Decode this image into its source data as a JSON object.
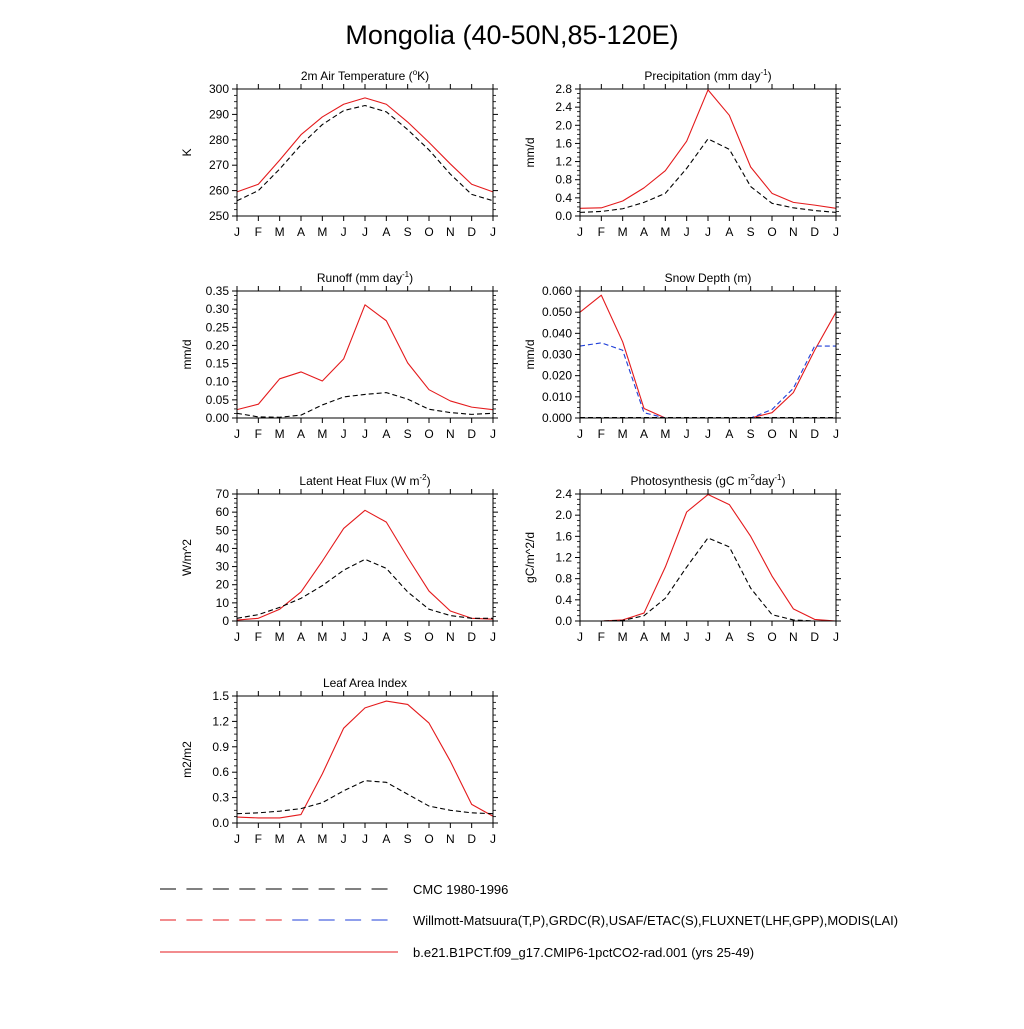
{
  "figure": {
    "title": "Mongolia (40-50N,85-120E)"
  },
  "colors": {
    "model": "#e41a1c",
    "cmc": "#000000",
    "obs": "#1f3fd8",
    "axis": "#000000"
  },
  "legend": {
    "placement": "bottom",
    "entries": [
      {
        "key": "cmc",
        "label": "CMC 1980-1996",
        "style": "dashed",
        "colors": [
          "#000000"
        ]
      },
      {
        "key": "obs",
        "label": "Willmott-Matsuura(T,P),GRDC(R),USAF/ETAC(S),FLUXNET(LHF,GPP),MODIS(LAI)",
        "style": "dashed",
        "colors": [
          "#e41a1c",
          "#1f3fd8"
        ]
      },
      {
        "key": "model",
        "label": "b.e21.B1PCT.f09_g17.CMIP6-1pctCO2-rad.001 (yrs 25-49)",
        "style": "solid",
        "colors": [
          "#e41a1c"
        ]
      }
    ]
  },
  "chart_data": [
    {
      "type": "line",
      "title": "2m Air Temperature (°K)",
      "title_parts": {
        "pre": "2m Air Temperature (",
        "sup": "o",
        "post": "K)"
      },
      "ylabel": "K",
      "ylim": [
        250,
        300
      ],
      "yticks": [
        "250",
        "260",
        "270",
        "280",
        "290",
        "300"
      ],
      "categories": [
        "J",
        "F",
        "M",
        "A",
        "M",
        "J",
        "J",
        "A",
        "S",
        "O",
        "N",
        "D",
        "J"
      ],
      "series": [
        {
          "key": "model",
          "style": "solid",
          "color": "#e41a1c",
          "values": [
            259.5,
            262.5,
            272,
            282,
            289,
            294,
            296.5,
            294,
            287,
            279,
            270.5,
            262.5,
            259.5
          ]
        },
        {
          "key": "cmc",
          "style": "dashed",
          "color": "#000000",
          "values": [
            256,
            260,
            268.5,
            278,
            286,
            291.5,
            293.5,
            291,
            284,
            276,
            266.5,
            258.5,
            256
          ]
        }
      ]
    },
    {
      "type": "line",
      "title": "Precipitation (mm day-1)",
      "title_parts": {
        "pre": "Precipitation (mm day",
        "sup": "-1",
        "post": ")"
      },
      "ylabel": "mm/d",
      "ylim": [
        0,
        2.8
      ],
      "yticks": [
        "0.0",
        "0.4",
        "0.8",
        "1.2",
        "1.6",
        "2.0",
        "2.4",
        "2.8"
      ],
      "categories": [
        "J",
        "F",
        "M",
        "A",
        "M",
        "J",
        "J",
        "A",
        "S",
        "O",
        "N",
        "D",
        "J"
      ],
      "series": [
        {
          "key": "model",
          "style": "solid",
          "color": "#e41a1c",
          "values": [
            0.17,
            0.18,
            0.33,
            0.62,
            1.0,
            1.65,
            2.78,
            2.22,
            1.08,
            0.5,
            0.3,
            0.24,
            0.17
          ]
        },
        {
          "key": "cmc",
          "style": "dashed",
          "color": "#000000",
          "values": [
            0.08,
            0.1,
            0.16,
            0.3,
            0.5,
            1.05,
            1.7,
            1.47,
            0.65,
            0.28,
            0.18,
            0.12,
            0.08
          ]
        }
      ]
    },
    {
      "type": "line",
      "title": "Runoff (mm day-1)",
      "title_parts": {
        "pre": "Runoff (mm day",
        "sup": "-1",
        "post": ")"
      },
      "ylabel": "mm/d",
      "ylim": [
        0,
        0.35
      ],
      "yticks": [
        "0.00",
        "0.05",
        "0.10",
        "0.15",
        "0.20",
        "0.25",
        "0.30",
        "0.35"
      ],
      "categories": [
        "J",
        "F",
        "M",
        "A",
        "M",
        "J",
        "J",
        "A",
        "S",
        "O",
        "N",
        "D",
        "J"
      ],
      "series": [
        {
          "key": "model",
          "style": "solid",
          "color": "#e41a1c",
          "values": [
            0.023,
            0.038,
            0.108,
            0.127,
            0.102,
            0.163,
            0.312,
            0.268,
            0.152,
            0.078,
            0.047,
            0.03,
            0.023
          ]
        },
        {
          "key": "cmc",
          "style": "dashed",
          "color": "#000000",
          "values": [
            0.013,
            0.003,
            0.002,
            0.008,
            0.036,
            0.058,
            0.065,
            0.07,
            0.052,
            0.024,
            0.015,
            0.01,
            0.013
          ]
        }
      ]
    },
    {
      "type": "line",
      "title": "Snow Depth (m)",
      "title_parts": {
        "pre": "Snow Depth (m)",
        "sup": "",
        "post": ""
      },
      "ylabel": "mm/d",
      "ylim": [
        0,
        0.06
      ],
      "yticks": [
        "0.000",
        "0.010",
        "0.020",
        "0.030",
        "0.040",
        "0.050",
        "0.060"
      ],
      "categories": [
        "J",
        "F",
        "M",
        "A",
        "M",
        "J",
        "J",
        "A",
        "S",
        "O",
        "N",
        "D",
        "J"
      ],
      "series": [
        {
          "key": "model",
          "style": "solid",
          "color": "#e41a1c",
          "values": [
            0.05,
            0.058,
            0.036,
            0.0045,
            0.0,
            0.0,
            0.0,
            0.0,
            0.0,
            0.0025,
            0.012,
            0.032,
            0.05
          ]
        },
        {
          "key": "obs",
          "style": "dashed",
          "color": "#1f3fd8",
          "values": [
            0.034,
            0.0355,
            0.032,
            0.0025,
            0.0,
            0.0,
            0.0,
            0.0,
            0.0,
            0.004,
            0.014,
            0.034,
            0.034
          ]
        },
        {
          "key": "cmc",
          "style": "dashed",
          "color": "#000000",
          "values": [
            0.0002,
            0.0002,
            0.0002,
            0.0002,
            0.0002,
            0.0002,
            0.0002,
            0.0002,
            0.0002,
            0.0002,
            0.0002,
            0.0002,
            0.0002
          ]
        }
      ]
    },
    {
      "type": "line",
      "title": "Latent Heat Flux (W m-2)",
      "title_parts": {
        "pre": "Latent Heat Flux (W m",
        "sup": "-2",
        "post": ")"
      },
      "ylabel": "W/m^2",
      "ylim": [
        0,
        70
      ],
      "yticks": [
        "0",
        "10",
        "20",
        "30",
        "40",
        "50",
        "60",
        "70"
      ],
      "categories": [
        "J",
        "F",
        "M",
        "A",
        "M",
        "J",
        "J",
        "A",
        "S",
        "O",
        "N",
        "D",
        "J"
      ],
      "series": [
        {
          "key": "model",
          "style": "solid",
          "color": "#e41a1c",
          "values": [
            0.5,
            1.5,
            6.5,
            16,
            33,
            51,
            61,
            54.5,
            35,
            16.5,
            5.5,
            1.5,
            1.0
          ]
        },
        {
          "key": "cmc",
          "style": "dashed",
          "color": "#000000",
          "values": [
            1.5,
            3.5,
            7.5,
            12.5,
            19.5,
            28,
            34,
            29,
            16,
            6.5,
            3,
            1.5,
            1.5
          ]
        }
      ]
    },
    {
      "type": "line",
      "title": "Photosynthesis (gC m-2day-1)",
      "title_parts": {
        "pre": "Photosynthesis (gC m",
        "sup": "-2",
        "post": "day",
        "sup2": "-1",
        "post2": ")"
      },
      "ylabel": "gC/m^2/d",
      "ylim": [
        0,
        2.4
      ],
      "yticks": [
        "0.0",
        "0.4",
        "0.8",
        "1.2",
        "1.6",
        "2.0",
        "2.4"
      ],
      "categories": [
        "J",
        "F",
        "M",
        "A",
        "M",
        "J",
        "J",
        "A",
        "S",
        "O",
        "N",
        "D",
        "J"
      ],
      "series": [
        {
          "key": "model",
          "style": "solid",
          "color": "#e41a1c",
          "values": [
            0.0,
            0.0,
            0.02,
            0.15,
            1.02,
            2.06,
            2.39,
            2.2,
            1.6,
            0.85,
            0.23,
            0.03,
            0.0
          ]
        },
        {
          "key": "cmc",
          "style": "dashed",
          "color": "#000000",
          "values": [
            0.0,
            0.0,
            0.01,
            0.1,
            0.43,
            1.02,
            1.57,
            1.4,
            0.62,
            0.12,
            0.02,
            0.0,
            0.0
          ]
        }
      ]
    },
    {
      "type": "line",
      "title": "Leaf Area Index",
      "title_parts": {
        "pre": "Leaf Area Index",
        "sup": "",
        "post": ""
      },
      "ylabel": "m2/m2",
      "ylim": [
        0,
        1.5
      ],
      "yticks": [
        "0.0",
        "0.3",
        "0.6",
        "0.9",
        "1.2",
        "1.5"
      ],
      "categories": [
        "J",
        "F",
        "M",
        "A",
        "M",
        "J",
        "J",
        "A",
        "S",
        "O",
        "N",
        "D",
        "J"
      ],
      "series": [
        {
          "key": "model",
          "style": "solid",
          "color": "#e41a1c",
          "values": [
            0.07,
            0.06,
            0.06,
            0.1,
            0.58,
            1.12,
            1.36,
            1.44,
            1.4,
            1.18,
            0.73,
            0.22,
            0.08
          ]
        },
        {
          "key": "cmc",
          "style": "dashed",
          "color": "#000000",
          "values": [
            0.11,
            0.12,
            0.14,
            0.17,
            0.24,
            0.38,
            0.5,
            0.48,
            0.34,
            0.2,
            0.15,
            0.12,
            0.11
          ]
        }
      ]
    }
  ]
}
